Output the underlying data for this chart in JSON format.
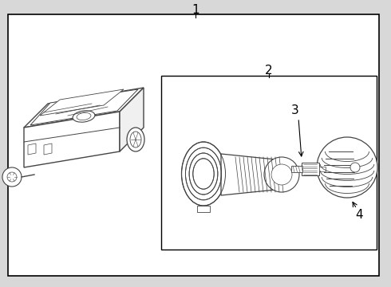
{
  "background_color": "#d8d8d8",
  "inner_bg_color": "#ffffff",
  "border_color": "#000000",
  "line_color": "#444444",
  "label_1": "1",
  "label_2": "2",
  "label_3": "3",
  "label_4": "4",
  "label_fontsize": 10
}
